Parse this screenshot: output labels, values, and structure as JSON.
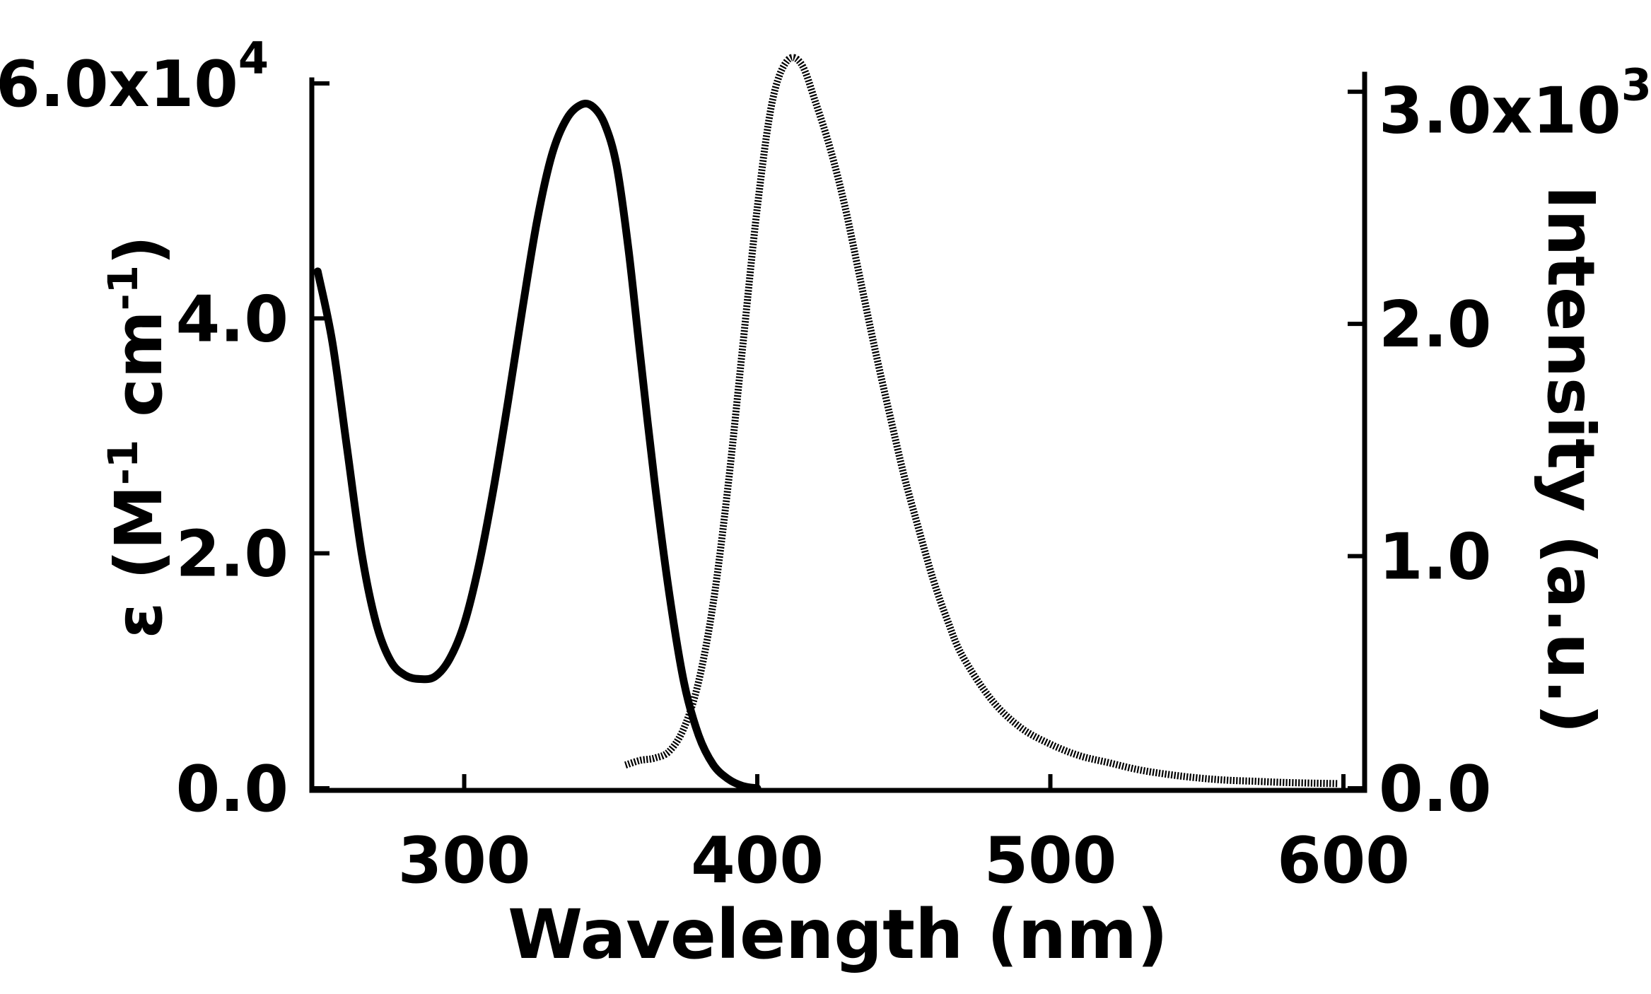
{
  "chart_data": {
    "type": "line",
    "xlabel": "Wavelength (nm)",
    "ylabel_left": {
      "prefix": "ε (M",
      "sup1": "-1",
      "middle": " cm",
      "sup2": "-1",
      "suffix": ")"
    },
    "ylabel_right": "Intensity (a.u.)",
    "xlim": [
      248,
      600
    ],
    "ylim_left": [
      0,
      60000
    ],
    "ylim_right": [
      0,
      3200
    ],
    "x_ticks": [
      {
        "value": 300,
        "label": "300"
      },
      {
        "value": 400,
        "label": "400"
      },
      {
        "value": 500,
        "label": "500"
      },
      {
        "value": 600,
        "label": "600"
      }
    ],
    "y_left_ticks": [
      {
        "value": 0,
        "label": "0.0"
      },
      {
        "value": 20000,
        "label": "2.0"
      },
      {
        "value": 40000,
        "label": "4.0"
      },
      {
        "value": 60000,
        "label": "6.0x10",
        "exp": "4"
      }
    ],
    "y_right_ticks": [
      {
        "value": 0,
        "label": "0.0"
      },
      {
        "value": 1000,
        "label": "1.0"
      },
      {
        "value": 2000,
        "label": "2.0"
      },
      {
        "value": 3000,
        "label": "3.0x10",
        "exp": "3"
      }
    ],
    "grid": false,
    "legend": "none",
    "series": [
      {
        "axis": "left",
        "style": "solid",
        "color": "#000000",
        "x": [
          250,
          255,
          260,
          265,
          270,
          275,
          280,
          285,
          290,
          295,
          300,
          305,
          310,
          315,
          320,
          325,
          330,
          335,
          340,
          344,
          348,
          352,
          356,
          360,
          365,
          370,
          375,
          380,
          385,
          390,
          395,
          400
        ],
        "y": [
          44000,
          38000,
          29000,
          20000,
          14000,
          10800,
          9600,
          9300,
          9500,
          11000,
          14000,
          19000,
          25500,
          33000,
          41000,
          48500,
          54000,
          57000,
          58200,
          58000,
          56500,
          53000,
          46000,
          37000,
          26000,
          16500,
          9000,
          4500,
          2000,
          800,
          200,
          0
        ]
      },
      {
        "axis": "right",
        "style": "dotted",
        "color": "#000000",
        "x": [
          355,
          360,
          365,
          370,
          375,
          380,
          385,
          390,
          395,
          400,
          405,
          410,
          415,
          420,
          425,
          430,
          435,
          440,
          445,
          450,
          455,
          460,
          465,
          470,
          480,
          490,
          500,
          510,
          520,
          530,
          540,
          550,
          560,
          570,
          580,
          590,
          598
        ],
        "y": [
          100,
          120,
          130,
          160,
          260,
          460,
          800,
          1300,
          1900,
          2500,
          2950,
          3130,
          3120,
          2950,
          2750,
          2500,
          2200,
          1900,
          1620,
          1350,
          1120,
          900,
          720,
          570,
          380,
          260,
          190,
          140,
          110,
          80,
          60,
          45,
          35,
          30,
          25,
          22,
          20
        ]
      }
    ]
  }
}
